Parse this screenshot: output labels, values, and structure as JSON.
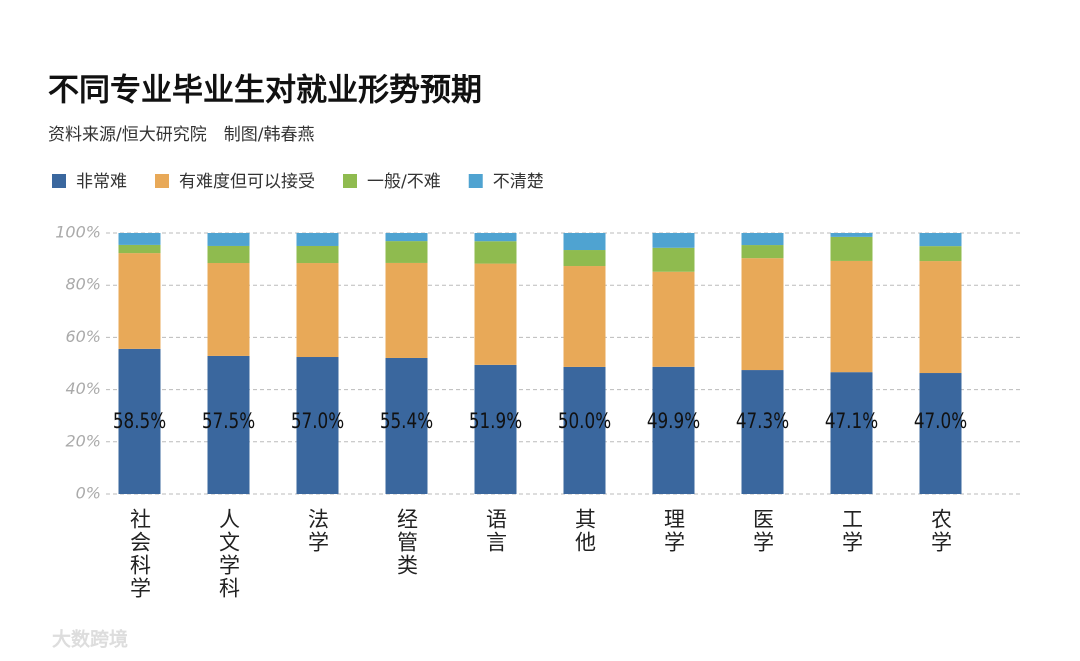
{
  "chart_data": {
    "type": "bar100",
    "title": "不同专业毕业生对就业形势预期",
    "subtitle": "资料来源/恒大研究院　制图/韩春燕",
    "watermark": "大数跨境",
    "categories": [
      "社会科学",
      "人文学科",
      "法学",
      "经管类",
      "语言",
      "其他",
      "理学",
      "医学",
      "工学",
      "农学"
    ],
    "series": [
      {
        "name": "非常难",
        "color": "#3a679e",
        "values": [
          58.5,
          57.5,
          57.0,
          55.4,
          51.9,
          50.0,
          49.9,
          47.3,
          47.1,
          47.0
        ],
        "value_labels": [
          "58.5%",
          "57.5%",
          "57.0%",
          "55.4%",
          "51.9%",
          "50.0%",
          "49.9%",
          "47.3%",
          "47.1%",
          "47.0%"
        ]
      },
      {
        "name": "有难度但可以接受",
        "color": "#e8a958",
        "values": [
          38.6,
          38.7,
          39.1,
          38.7,
          40.7,
          39.7,
          37.3,
          42.7,
          43.0,
          43.5
        ]
      },
      {
        "name": "一般/不难",
        "color": "#8fbb4f",
        "values": [
          3.3,
          7.1,
          7.1,
          8.9,
          9.0,
          6.3,
          9.4,
          5.0,
          9.3,
          5.8
        ]
      },
      {
        "name": "不清楚",
        "color": "#4fa3d1",
        "values": [
          4.8,
          5.4,
          5.4,
          3.3,
          3.3,
          6.7,
          5.8,
          4.6,
          1.5,
          5.1
        ]
      }
    ],
    "ylim": [
      0,
      100
    ],
    "yticks": [
      {
        "value": 0,
        "label": "0%"
      },
      {
        "value": 20,
        "label": "20%"
      },
      {
        "value": 40,
        "label": "40%"
      },
      {
        "value": 60,
        "label": "60%"
      },
      {
        "value": 80,
        "label": "80%"
      },
      {
        "value": 100,
        "label": "100%"
      }
    ],
    "grid": true,
    "legend": "top-left"
  }
}
